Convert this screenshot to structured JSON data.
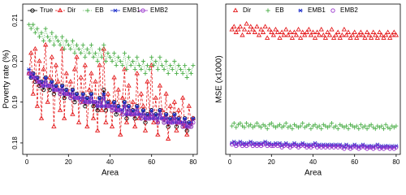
{
  "chart_data": [
    {
      "type": "line",
      "ylabel": "Poverty rate (%)",
      "xlabel": "Area",
      "legend": "top-left",
      "xlim": [
        -2,
        82
      ],
      "xticks": [
        0,
        20,
        40,
        60,
        80
      ],
      "ylim": [
        0.1772,
        0.214
      ],
      "yticks": [
        0.18,
        0.19,
        {
          "value": 0.2,
          "label": "0.20"
        },
        0.21
      ],
      "x": [
        1,
        2,
        3,
        4,
        5,
        6,
        7,
        8,
        9,
        10,
        11,
        12,
        13,
        14,
        15,
        16,
        17,
        18,
        19,
        20,
        21,
        22,
        23,
        24,
        25,
        26,
        27,
        28,
        29,
        30,
        31,
        32,
        33,
        34,
        35,
        36,
        37,
        38,
        39,
        40,
        41,
        42,
        43,
        44,
        45,
        46,
        47,
        48,
        49,
        50,
        51,
        52,
        53,
        54,
        55,
        56,
        57,
        58,
        59,
        60,
        61,
        62,
        63,
        64,
        65,
        66,
        67,
        68,
        69,
        70,
        71,
        72,
        73,
        74,
        75,
        76,
        77,
        78,
        79,
        80
      ],
      "series": [
        {
          "name": "True",
          "color": "#000000",
          "marker": "circle",
          "line": "solid",
          "values": [
            0.197,
            0.196,
            0.197,
            0.195,
            0.196,
            0.194,
            0.195,
            0.193,
            0.196,
            0.194,
            0.193,
            0.195,
            0.192,
            0.194,
            0.193,
            0.192,
            0.194,
            0.191,
            0.193,
            0.192,
            0.191,
            0.193,
            0.19,
            0.192,
            0.191,
            0.19,
            0.192,
            0.189,
            0.191,
            0.19,
            0.192,
            0.189,
            0.19,
            0.188,
            0.191,
            0.189,
            0.193,
            0.188,
            0.19,
            0.189,
            0.188,
            0.19,
            0.187,
            0.189,
            0.188,
            0.187,
            0.19,
            0.186,
            0.189,
            0.187,
            0.188,
            0.186,
            0.189,
            0.187,
            0.186,
            0.188,
            0.185,
            0.187,
            0.186,
            0.188,
            0.186,
            0.187,
            0.185,
            0.188,
            0.186,
            0.185,
            0.187,
            0.184,
            0.186,
            0.185,
            0.187,
            0.184,
            0.186,
            0.185,
            0.184,
            0.186,
            0.183,
            0.185,
            0.184,
            0.186
          ]
        },
        {
          "name": "Dir",
          "color": "#e41a1c",
          "marker": "triangle",
          "line": "dashed",
          "values": [
            0.197,
            0.202,
            0.192,
            0.203,
            0.189,
            0.2,
            0.186,
            0.198,
            0.204,
            0.19,
            0.196,
            0.201,
            0.184,
            0.199,
            0.195,
            0.188,
            0.203,
            0.186,
            0.197,
            0.192,
            0.195,
            0.187,
            0.198,
            0.201,
            0.185,
            0.196,
            0.19,
            0.199,
            0.184,
            0.193,
            0.197,
            0.186,
            0.195,
            0.183,
            0.199,
            0.188,
            0.203,
            0.185,
            0.192,
            0.19,
            0.184,
            0.196,
            0.188,
            0.193,
            0.182,
            0.191,
            0.198,
            0.185,
            0.194,
            0.187,
            0.19,
            0.184,
            0.197,
            0.186,
            0.192,
            0.189,
            0.183,
            0.195,
            0.187,
            0.199,
            0.185,
            0.191,
            0.182,
            0.194,
            0.188,
            0.186,
            0.192,
            0.181,
            0.189,
            0.186,
            0.19,
            0.183,
            0.188,
            0.185,
            0.191,
            0.184,
            0.182,
            0.189,
            0.185,
            0.186
          ]
        },
        {
          "name": "EB",
          "color": "#4daf4a",
          "marker": "plus",
          "line": "dotted",
          "values": [
            0.209,
            0.208,
            0.209,
            0.207,
            0.208,
            0.206,
            0.207,
            0.205,
            0.208,
            0.206,
            0.205,
            0.207,
            0.204,
            0.206,
            0.205,
            0.204,
            0.206,
            0.203,
            0.205,
            0.204,
            0.203,
            0.205,
            0.202,
            0.204,
            0.203,
            0.202,
            0.204,
            0.201,
            0.203,
            0.202,
            0.204,
            0.201,
            0.202,
            0.2,
            0.203,
            0.201,
            0.204,
            0.2,
            0.202,
            0.201,
            0.2,
            0.202,
            0.199,
            0.201,
            0.2,
            0.199,
            0.202,
            0.198,
            0.201,
            0.199,
            0.2,
            0.198,
            0.201,
            0.199,
            0.198,
            0.2,
            0.197,
            0.199,
            0.198,
            0.201,
            0.199,
            0.2,
            0.198,
            0.201,
            0.199,
            0.198,
            0.2,
            0.197,
            0.199,
            0.198,
            0.2,
            0.197,
            0.199,
            0.198,
            0.197,
            0.199,
            0.196,
            0.198,
            0.197,
            0.199
          ]
        },
        {
          "name": "EMB1",
          "color": "#2233cc",
          "marker": "star",
          "line": "solid",
          "values": [
            0.198,
            0.196,
            0.197,
            0.196,
            0.196,
            0.195,
            0.195,
            0.194,
            0.196,
            0.194,
            0.194,
            0.195,
            0.193,
            0.194,
            0.193,
            0.193,
            0.194,
            0.192,
            0.193,
            0.192,
            0.192,
            0.193,
            0.191,
            0.192,
            0.191,
            0.191,
            0.192,
            0.19,
            0.191,
            0.19,
            0.192,
            0.19,
            0.19,
            0.189,
            0.191,
            0.189,
            0.192,
            0.189,
            0.19,
            0.189,
            0.189,
            0.19,
            0.188,
            0.189,
            0.188,
            0.188,
            0.19,
            0.187,
            0.189,
            0.187,
            0.188,
            0.187,
            0.189,
            0.187,
            0.187,
            0.188,
            0.186,
            0.187,
            0.186,
            0.188,
            0.186,
            0.187,
            0.186,
            0.188,
            0.186,
            0.186,
            0.187,
            0.185,
            0.186,
            0.185,
            0.187,
            0.185,
            0.186,
            0.185,
            0.185,
            0.186,
            0.184,
            0.185,
            0.185,
            0.186
          ]
        },
        {
          "name": "EMB2",
          "color": "#9933cc",
          "marker": "circle",
          "line": "solid",
          "values": [
            0.197,
            0.197,
            0.196,
            0.196,
            0.195,
            0.195,
            0.194,
            0.194,
            0.195,
            0.194,
            0.194,
            0.194,
            0.193,
            0.193,
            0.193,
            0.192,
            0.193,
            0.192,
            0.192,
            0.192,
            0.191,
            0.192,
            0.191,
            0.191,
            0.191,
            0.19,
            0.191,
            0.19,
            0.19,
            0.19,
            0.191,
            0.19,
            0.19,
            0.189,
            0.19,
            0.189,
            0.191,
            0.189,
            0.189,
            0.189,
            0.188,
            0.189,
            0.188,
            0.188,
            0.188,
            0.187,
            0.189,
            0.187,
            0.188,
            0.187,
            0.187,
            0.187,
            0.188,
            0.187,
            0.186,
            0.187,
            0.186,
            0.186,
            0.186,
            0.187,
            0.186,
            0.186,
            0.185,
            0.187,
            0.186,
            0.185,
            0.186,
            0.185,
            0.185,
            0.185,
            0.186,
            0.185,
            0.185,
            0.185,
            0.184,
            0.185,
            0.184,
            0.184,
            0.184,
            0.185
          ]
        }
      ]
    },
    {
      "type": "scatter",
      "ylabel": "MSE (x1000)",
      "xlabel": "Area",
      "legend": "top-left",
      "xlim": [
        -2,
        82
      ],
      "xticks": [
        0,
        20,
        40,
        60,
        80
      ],
      "ylim": [
        22,
        75
      ],
      "x": [
        1,
        2,
        3,
        4,
        5,
        6,
        7,
        8,
        9,
        10,
        11,
        12,
        13,
        14,
        15,
        16,
        17,
        18,
        19,
        20,
        21,
        22,
        23,
        24,
        25,
        26,
        27,
        28,
        29,
        30,
        31,
        32,
        33,
        34,
        35,
        36,
        37,
        38,
        39,
        40,
        41,
        42,
        43,
        44,
        45,
        46,
        47,
        48,
        49,
        50,
        51,
        52,
        53,
        54,
        55,
        56,
        57,
        58,
        59,
        60,
        61,
        62,
        63,
        64,
        65,
        66,
        67,
        68,
        69,
        70,
        71,
        72,
        73,
        74,
        75,
        76,
        77,
        78,
        79,
        80
      ],
      "series": [
        {
          "name": "Dir",
          "color": "#e41a1c",
          "marker": "triangle",
          "line": "none",
          "values": [
            66,
            67,
            65,
            66,
            67,
            64,
            66,
            68,
            65,
            67,
            66,
            65,
            67,
            64,
            66,
            65,
            67,
            63,
            66,
            65,
            64,
            66,
            65,
            63,
            65,
            64,
            66,
            64,
            65,
            63,
            65,
            64,
            66,
            63,
            65,
            64,
            65,
            66,
            64,
            65,
            63,
            65,
            64,
            66,
            64,
            63,
            65,
            64,
            66,
            63,
            64,
            65,
            63,
            64,
            66,
            64,
            65,
            63,
            64,
            65,
            63,
            64,
            65,
            64,
            63,
            65,
            64,
            63,
            65,
            64,
            63,
            65,
            64,
            63,
            64,
            65,
            63,
            64,
            65,
            64
          ]
        },
        {
          "name": "EB",
          "color": "#4daf4a",
          "marker": "plus",
          "line": "none",
          "values": [
            32,
            33,
            31.5,
            32.5,
            33,
            32,
            31.5,
            33,
            32,
            32.5,
            31.5,
            32,
            33,
            32,
            31.5,
            32.5,
            32,
            31,
            32.5,
            33,
            32,
            31.5,
            32,
            32.5,
            31.5,
            32,
            33,
            31.5,
            32,
            31,
            32.5,
            32,
            31.5,
            32,
            33,
            31.5,
            32,
            32.5,
            31,
            32,
            32.5,
            31.5,
            32,
            31,
            32.5,
            32,
            31.5,
            32,
            33,
            31.5,
            32,
            31,
            32.5,
            32,
            31.5,
            32,
            31,
            32.5,
            32,
            31.5,
            32,
            31,
            32.5,
            31.5,
            32,
            31,
            32,
            32.5,
            31.5,
            31,
            32,
            31.5,
            32,
            31,
            32.5,
            31.5,
            31,
            32,
            31.5,
            32
          ]
        },
        {
          "name": "EMB1",
          "color": "#2233cc",
          "marker": "star",
          "line": "none",
          "values": [
            26,
            26.5,
            25.5,
            26,
            26.5,
            25.5,
            26,
            25.5,
            26,
            26.5,
            25.5,
            26,
            25.5,
            26,
            25.5,
            26,
            26.5,
            25.5,
            26,
            25.5,
            25.5,
            26,
            25.5,
            26,
            25,
            25.5,
            26,
            25.5,
            25,
            25.5,
            26,
            25.5,
            25,
            25.5,
            26,
            25.5,
            25,
            25.5,
            25,
            25.5,
            26,
            25,
            25.5,
            25,
            25.5,
            25,
            25.5,
            25,
            25.5,
            25,
            25.5,
            25,
            25.5,
            25,
            24.5,
            25.5,
            25,
            24.5,
            25,
            25.5,
            25,
            24.5,
            25,
            25.5,
            25,
            24.5,
            25,
            25,
            24.5,
            25,
            25.5,
            24.5,
            25,
            24.5,
            25,
            25,
            24.5,
            25,
            24.5,
            25
          ]
        },
        {
          "name": "EMB2",
          "color": "#9933cc",
          "marker": "circle",
          "line": "none",
          "values": [
            25.5,
            26,
            25,
            25.5,
            26,
            25,
            25.5,
            25,
            25.5,
            26,
            25,
            25.5,
            25,
            25.5,
            25,
            25.5,
            26,
            25,
            25.5,
            25,
            25,
            25.5,
            25,
            25.5,
            24.5,
            25,
            25.5,
            25,
            24.5,
            25,
            25.5,
            25,
            24.5,
            25,
            25.5,
            25,
            24.5,
            25,
            24.5,
            25,
            25.5,
            24.5,
            25,
            24.5,
            25,
            24.5,
            25,
            24.5,
            25,
            24.5,
            25,
            24.5,
            25,
            24.5,
            24,
            25,
            24.5,
            24,
            24.5,
            25,
            24.5,
            24,
            24.5,
            25,
            24.5,
            24,
            24.5,
            24.5,
            24,
            24.5,
            25,
            24,
            24.5,
            24,
            24.5,
            24.5,
            24,
            24.5,
            24,
            24.5
          ]
        }
      ]
    }
  ]
}
